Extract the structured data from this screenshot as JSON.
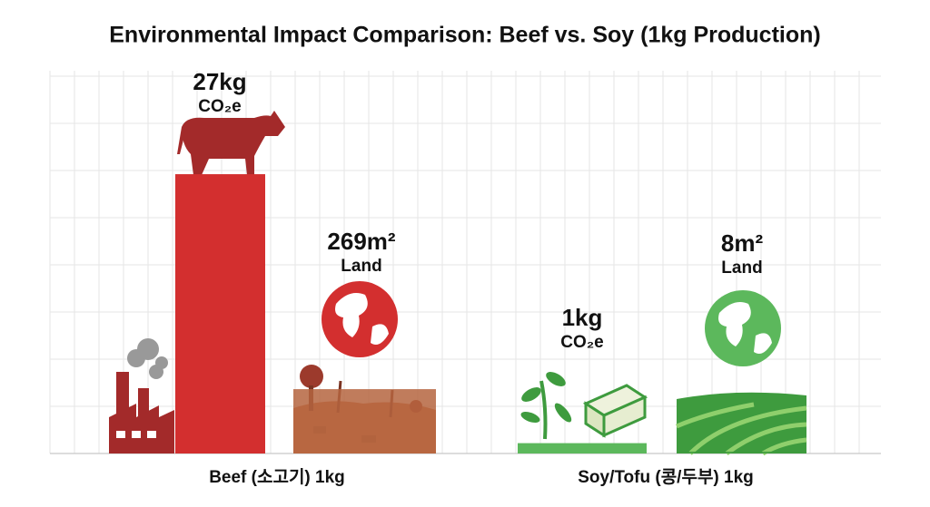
{
  "chart_data": {
    "type": "bar",
    "title": "Environmental Impact Comparison: Beef vs. Soy (1kg Production)",
    "categories": [
      "Beef (소고기) 1kg",
      "Soy/Tofu (콩/두부) 1kg"
    ],
    "series": [
      {
        "name": "CO₂e",
        "colors": [
          "#d32f2f",
          "#5cb85c"
        ],
        "values": [
          27,
          1
        ],
        "value_labels": [
          "27kg",
          "1kg"
        ]
      },
      {
        "name": "Land",
        "axis": "y2",
        "colors": [
          "#b5653f",
          "#3e9b3e"
        ],
        "values": [
          269,
          8
        ],
        "value_labels": [
          "269m²",
          "8m²"
        ]
      }
    ],
    "ylim": [
      0,
      37
    ],
    "y2lim": [
      0,
      1600
    ]
  }
}
